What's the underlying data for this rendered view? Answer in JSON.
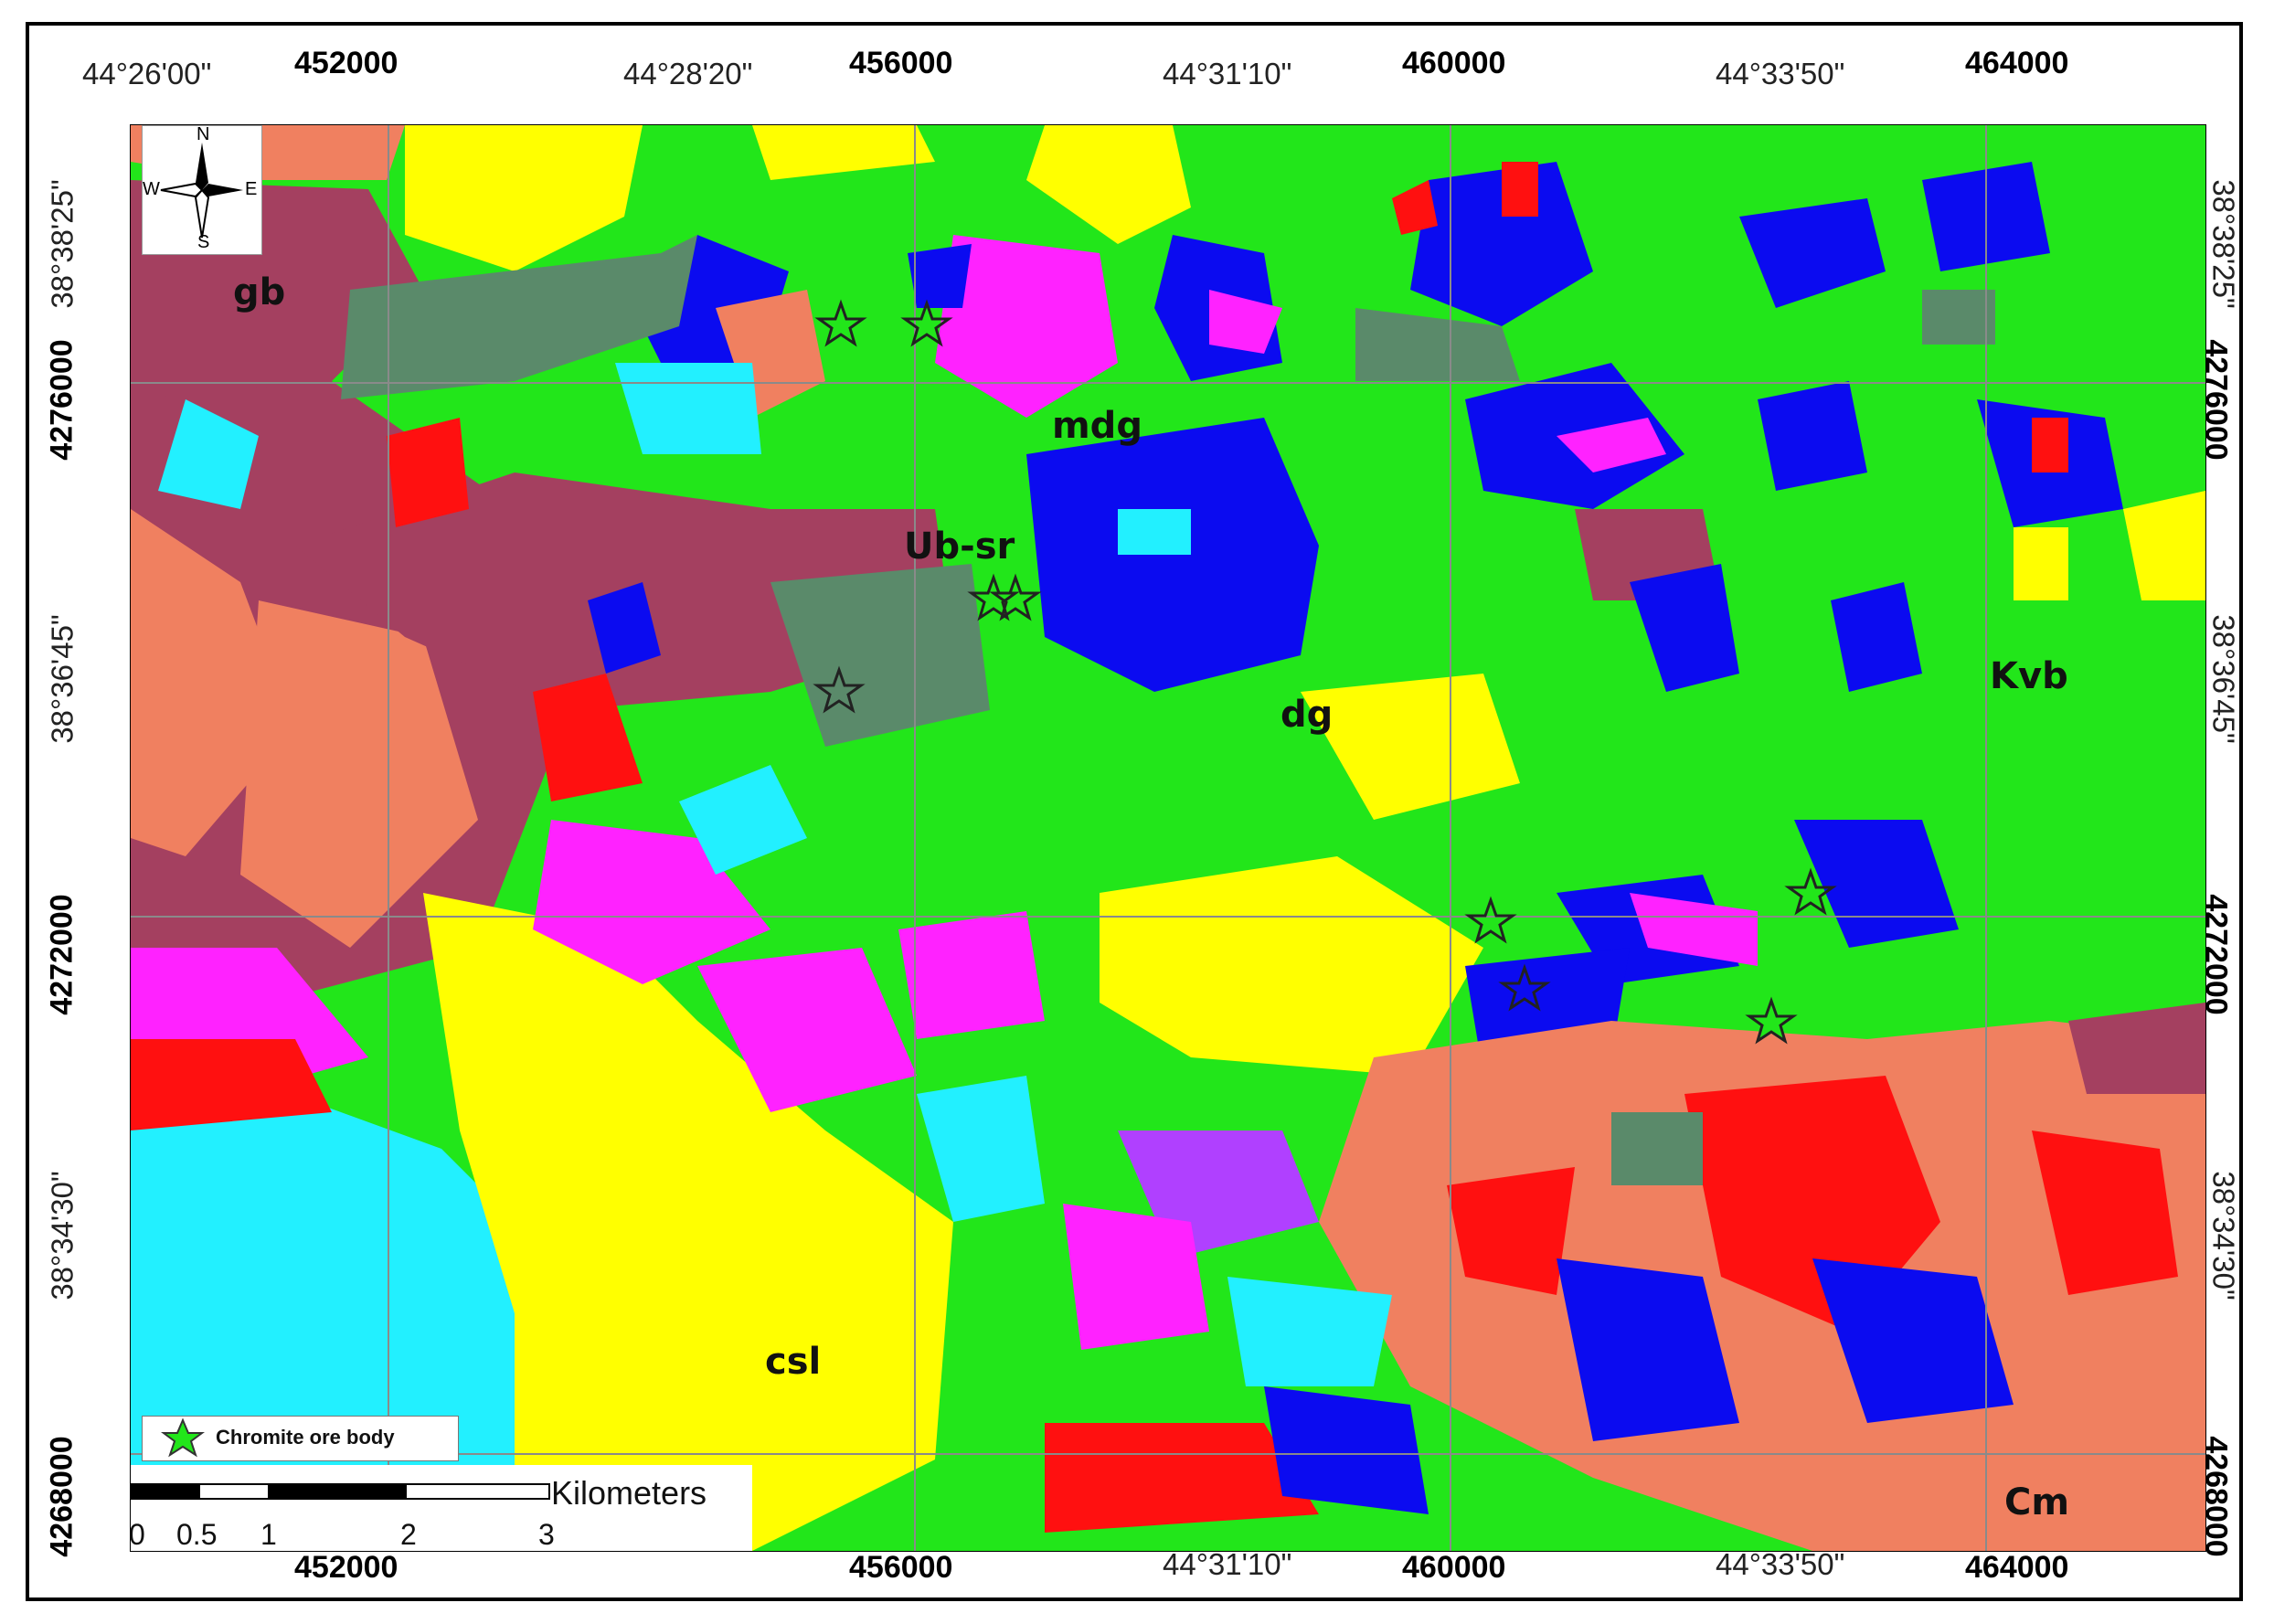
{
  "map": {
    "top_ticks": [
      {
        "text": "44°26'00\"",
        "kind": "dms"
      },
      {
        "text": "452000",
        "kind": "utm"
      },
      {
        "text": "44°28'20\"",
        "kind": "dms"
      },
      {
        "text": "456000",
        "kind": "utm"
      },
      {
        "text": "44°31'10\"",
        "kind": "dms"
      },
      {
        "text": "460000",
        "kind": "utm"
      },
      {
        "text": "44°33'50\"",
        "kind": "dms"
      },
      {
        "text": "464000",
        "kind": "utm"
      }
    ],
    "bottom_ticks": [
      {
        "text": "452000",
        "kind": "utm"
      },
      {
        "text": "456000",
        "kind": "utm"
      },
      {
        "text": "44°31'10\"",
        "kind": "dms"
      },
      {
        "text": "460000",
        "kind": "utm"
      },
      {
        "text": "44°33'50\"",
        "kind": "dms"
      },
      {
        "text": "464000",
        "kind": "utm"
      }
    ],
    "left_ticks": [
      {
        "text": "38°38'25\"",
        "kind": "dms"
      },
      {
        "text": "4276000",
        "kind": "utm"
      },
      {
        "text": "38°36'45\"",
        "kind": "dms"
      },
      {
        "text": "4272000",
        "kind": "utm"
      },
      {
        "text": "38°34'30\"",
        "kind": "dms"
      },
      {
        "text": "4268000",
        "kind": "utm"
      }
    ],
    "right_ticks": [
      {
        "text": "38°38'25\"",
        "kind": "dms"
      },
      {
        "text": "4276000",
        "kind": "utm"
      },
      {
        "text": "38°36'45\"",
        "kind": "dms"
      },
      {
        "text": "4272000",
        "kind": "utm"
      },
      {
        "text": "38°34'30\"",
        "kind": "dms"
      },
      {
        "text": "4268000",
        "kind": "utm"
      }
    ],
    "unit_labels": [
      "gb",
      "mdg",
      "Ub-sr",
      "dg",
      "Kvb",
      "csl",
      "Cm"
    ],
    "compass": {
      "n": "N",
      "s": "S",
      "e": "E",
      "w": "W"
    },
    "legend": {
      "label": "Chromite ore body",
      "icon": "green-star-icon"
    },
    "scale_bar": {
      "ticks": [
        "0",
        "0.5",
        "1",
        "2",
        "3"
      ],
      "unit": "Kilometers"
    },
    "colors": {
      "green": "#22e61a",
      "blue": "#0b0bf0",
      "yellow": "#ffff00",
      "magenta": "#ff22ff",
      "cyan": "#22f0ff",
      "red": "#ff1010",
      "salmon": "#f08060",
      "maroon": "#a44060",
      "gray_green": "#5a8a6a",
      "purple": "#b040ff"
    }
  }
}
